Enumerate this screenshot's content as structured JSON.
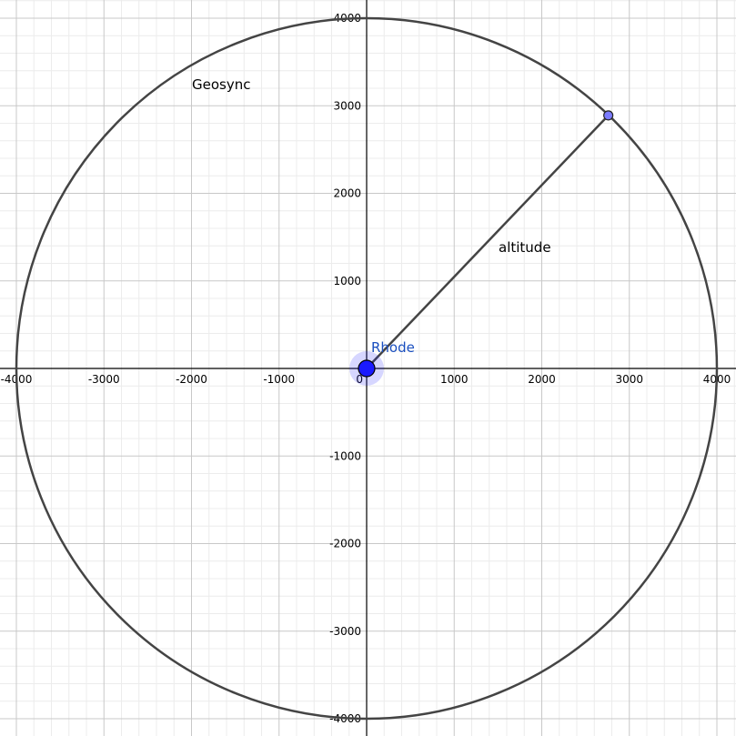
{
  "graph": {
    "axis_range": {
      "x": [
        -4200,
        4200
      ],
      "y": [
        -4200,
        4200
      ]
    },
    "major_step": 1000,
    "minor_step": 200,
    "x_ticks": [
      "-4000",
      "-3000",
      "-2000",
      "-1000",
      "0",
      "1000",
      "2000",
      "3000",
      "4000"
    ],
    "y_ticks": [
      "4000",
      "3000",
      "2000",
      "1000",
      "-1000",
      "-2000",
      "-3000",
      "-4000"
    ],
    "grid": true
  },
  "objects": {
    "circle": {
      "label": "Geosync",
      "center": [
        0,
        0
      ],
      "radius": 4000,
      "color": "#444444"
    },
    "segment": {
      "label": "altitude",
      "from": [
        0,
        0
      ],
      "to": [
        2760,
        2890
      ],
      "color": "#444444"
    },
    "center_point": {
      "label": "Rhode",
      "x": 0,
      "y": 0,
      "color": "#1a1aff"
    },
    "moving_point": {
      "x": 2760,
      "y": 2890,
      "color": "#7b7bff"
    }
  }
}
